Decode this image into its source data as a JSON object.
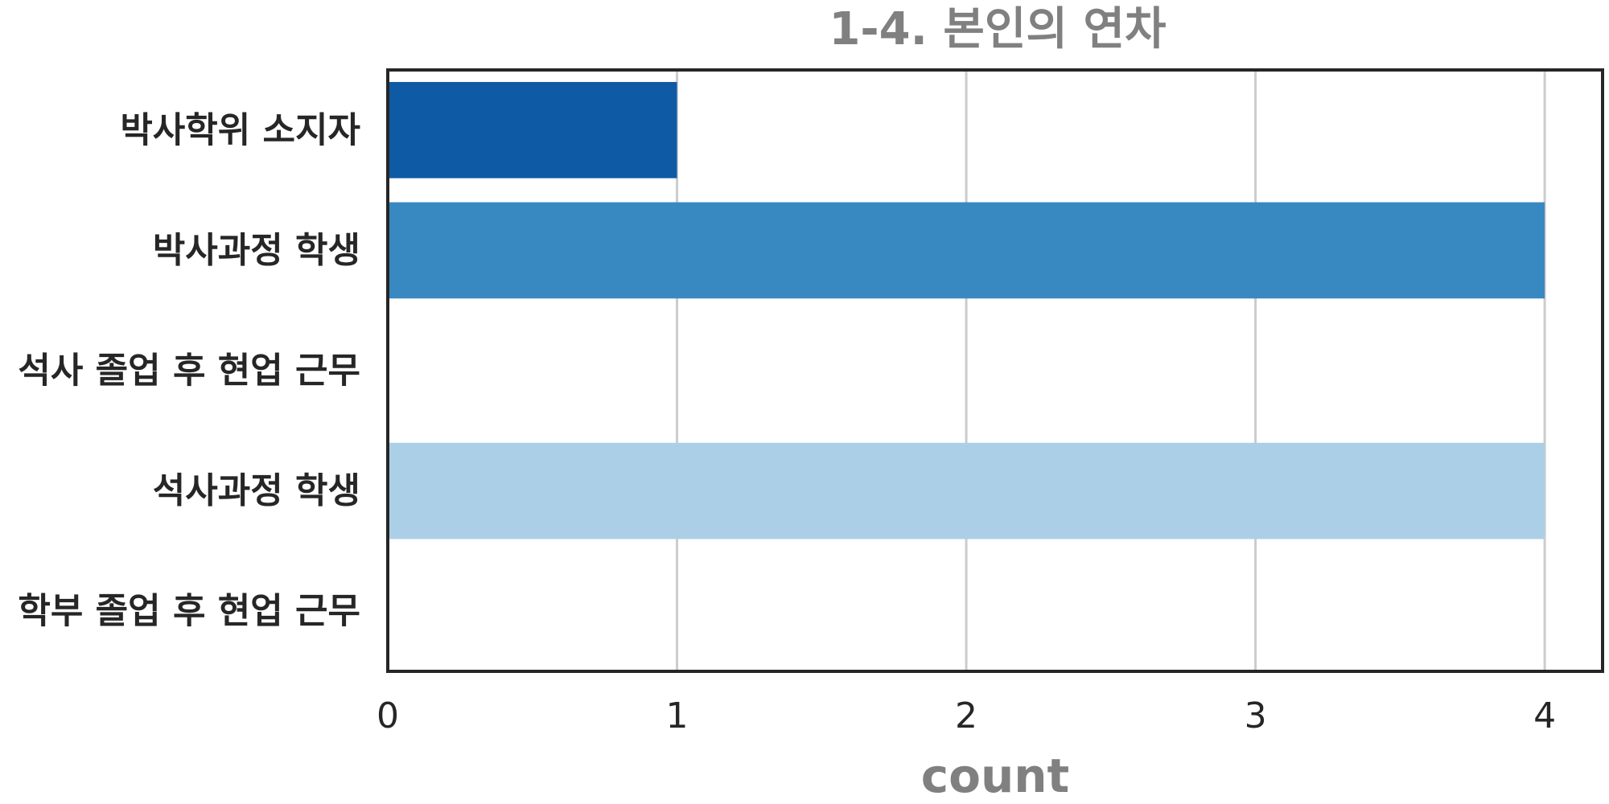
{
  "chart_data": {
    "type": "bar",
    "orientation": "horizontal",
    "title": "1-4. 본인의 연차",
    "xlabel": "count",
    "ylabel": "",
    "categories": [
      "박사학위 소지자",
      "박사과정 학생",
      "석사 졸업 후 현업 근무",
      "석사과정 학생",
      "학부 졸업 후 현업 근무"
    ],
    "values": [
      1,
      4,
      0,
      4,
      0
    ],
    "xlim": [
      0,
      4.2
    ],
    "xticks": [
      "0",
      "1",
      "2",
      "3",
      "4"
    ],
    "grid": "vertical",
    "legend": "none",
    "bar_colors": [
      "#0f5aa5",
      "#3888c1",
      "#6aaed6",
      "#abcfe6",
      "#d8e7f5"
    ]
  },
  "colors": {
    "text": "#262626",
    "muted": "#808080",
    "grid": "#cccccc",
    "frame": "#262626"
  }
}
